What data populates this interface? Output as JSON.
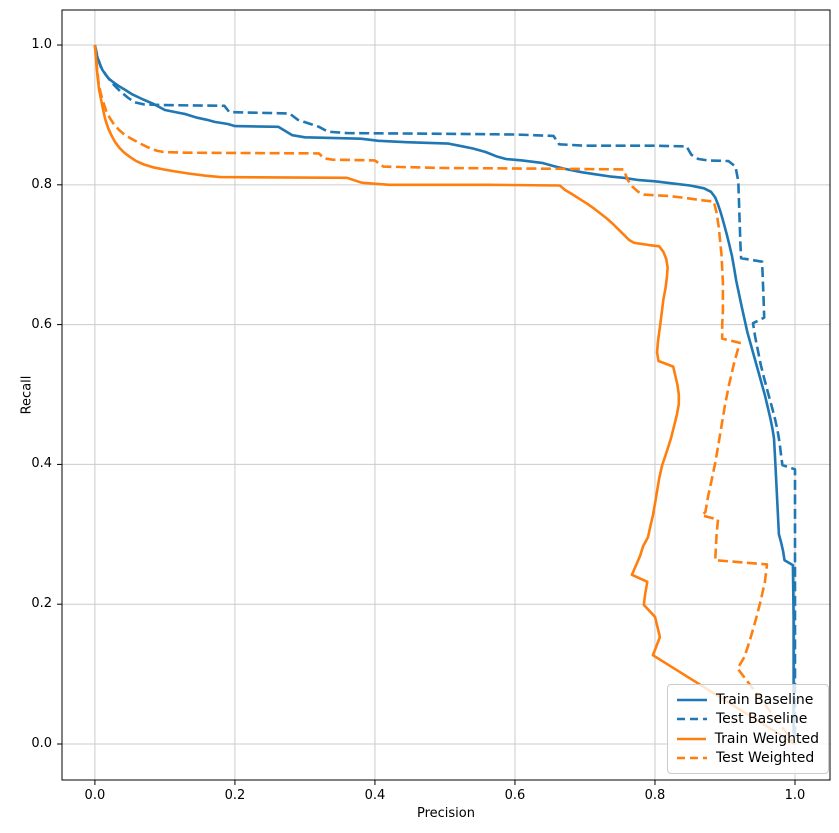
{
  "chart_data": {
    "type": "line",
    "title": "",
    "xlabel": "Precision",
    "ylabel": "Recall",
    "xlim": [
      -0.047,
      1.05
    ],
    "ylim": [
      -0.0515,
      1.0501
    ],
    "xtick_labels": [
      "0.0",
      "0.2",
      "0.4",
      "0.6",
      "0.8",
      "1.0"
    ],
    "ytick_labels": [
      "0.0",
      "0.2",
      "0.4",
      "0.6",
      "0.8",
      "1.0"
    ],
    "grid": true,
    "grid_color": "#cccccc",
    "axes_color": "#000000",
    "legend_position": "lower right",
    "series": [
      {
        "name": "Train Baseline",
        "color": "#1f77b4",
        "style": "solid",
        "points": [
          [
            0.0,
            1.0
          ],
          [
            0.002,
            0.988
          ],
          [
            0.005,
            0.978
          ],
          [
            0.008,
            0.97
          ],
          [
            0.011,
            0.964
          ],
          [
            0.015,
            0.958
          ],
          [
            0.02,
            0.952
          ],
          [
            0.026,
            0.947
          ],
          [
            0.033,
            0.942
          ],
          [
            0.043,
            0.936
          ],
          [
            0.054,
            0.929
          ],
          [
            0.069,
            0.922
          ],
          [
            0.083,
            0.916
          ],
          [
            0.1,
            0.907
          ],
          [
            0.115,
            0.904
          ],
          [
            0.13,
            0.901
          ],
          [
            0.146,
            0.896
          ],
          [
            0.16,
            0.893
          ],
          [
            0.171,
            0.89
          ],
          [
            0.19,
            0.887
          ],
          [
            0.2,
            0.884
          ],
          [
            0.262,
            0.883
          ],
          [
            0.272,
            0.877
          ],
          [
            0.282,
            0.871
          ],
          [
            0.3,
            0.868
          ],
          [
            0.38,
            0.866
          ],
          [
            0.405,
            0.863
          ],
          [
            0.445,
            0.861
          ],
          [
            0.505,
            0.859
          ],
          [
            0.52,
            0.856
          ],
          [
            0.54,
            0.852
          ],
          [
            0.558,
            0.847
          ],
          [
            0.573,
            0.841
          ],
          [
            0.587,
            0.837
          ],
          [
            0.61,
            0.835
          ],
          [
            0.64,
            0.831
          ],
          [
            0.658,
            0.826
          ],
          [
            0.675,
            0.822
          ],
          [
            0.695,
            0.818
          ],
          [
            0.715,
            0.815
          ],
          [
            0.735,
            0.812
          ],
          [
            0.755,
            0.81
          ],
          [
            0.775,
            0.807
          ],
          [
            0.8,
            0.805
          ],
          [
            0.825,
            0.802
          ],
          [
            0.85,
            0.799
          ],
          [
            0.87,
            0.795
          ],
          [
            0.88,
            0.79
          ],
          [
            0.886,
            0.782
          ],
          [
            0.89,
            0.772
          ],
          [
            0.894,
            0.76
          ],
          [
            0.898,
            0.746
          ],
          [
            0.902,
            0.731
          ],
          [
            0.906,
            0.715
          ],
          [
            0.91,
            0.698
          ],
          [
            0.913,
            0.681
          ],
          [
            0.916,
            0.663
          ],
          [
            0.92,
            0.644
          ],
          [
            0.924,
            0.625
          ],
          [
            0.928,
            0.607
          ],
          [
            0.932,
            0.589
          ],
          [
            0.937,
            0.571
          ],
          [
            0.942,
            0.553
          ],
          [
            0.947,
            0.535
          ],
          [
            0.952,
            0.517
          ],
          [
            0.957,
            0.499
          ],
          [
            0.961,
            0.482
          ],
          [
            0.965,
            0.465
          ],
          [
            0.968,
            0.45
          ],
          [
            0.97,
            0.437
          ],
          [
            0.971,
            0.419
          ],
          [
            0.972,
            0.4
          ],
          [
            0.973,
            0.38
          ],
          [
            0.974,
            0.36
          ],
          [
            0.975,
            0.34
          ],
          [
            0.976,
            0.32
          ],
          [
            0.977,
            0.3
          ],
          [
            0.98,
            0.289
          ],
          [
            0.983,
            0.276
          ],
          [
            0.985,
            0.263
          ],
          [
            0.997,
            0.256
          ],
          [
            0.998,
            0.18
          ],
          [
            0.998,
            0.015
          ]
        ]
      },
      {
        "name": "Test Baseline",
        "color": "#1f77b4",
        "style": "dashed",
        "points": [
          [
            0.0,
            1.0
          ],
          [
            0.004,
            0.982
          ],
          [
            0.009,
            0.968
          ],
          [
            0.018,
            0.954
          ],
          [
            0.028,
            0.942
          ],
          [
            0.038,
            0.932
          ],
          [
            0.048,
            0.924
          ],
          [
            0.057,
            0.918
          ],
          [
            0.07,
            0.915
          ],
          [
            0.1,
            0.914
          ],
          [
            0.185,
            0.913
          ],
          [
            0.192,
            0.904
          ],
          [
            0.278,
            0.902
          ],
          [
            0.29,
            0.893
          ],
          [
            0.32,
            0.883
          ],
          [
            0.333,
            0.876
          ],
          [
            0.36,
            0.874
          ],
          [
            0.5,
            0.873
          ],
          [
            0.6,
            0.872
          ],
          [
            0.655,
            0.87
          ],
          [
            0.663,
            0.858
          ],
          [
            0.7,
            0.856
          ],
          [
            0.8,
            0.856
          ],
          [
            0.845,
            0.855
          ],
          [
            0.852,
            0.843
          ],
          [
            0.862,
            0.837
          ],
          [
            0.875,
            0.835
          ],
          [
            0.905,
            0.834
          ],
          [
            0.915,
            0.826
          ],
          [
            0.919,
            0.805
          ],
          [
            0.92,
            0.775
          ],
          [
            0.921,
            0.745
          ],
          [
            0.922,
            0.715
          ],
          [
            0.923,
            0.695
          ],
          [
            0.953,
            0.69
          ],
          [
            0.954,
            0.665
          ],
          [
            0.955,
            0.64
          ],
          [
            0.956,
            0.61
          ],
          [
            0.94,
            0.602
          ],
          [
            0.943,
            0.583
          ],
          [
            0.947,
            0.563
          ],
          [
            0.951,
            0.543
          ],
          [
            0.956,
            0.523
          ],
          [
            0.961,
            0.504
          ],
          [
            0.966,
            0.486
          ],
          [
            0.971,
            0.467
          ],
          [
            0.975,
            0.449
          ],
          [
            0.978,
            0.431
          ],
          [
            0.98,
            0.414
          ],
          [
            0.982,
            0.399
          ],
          [
            1.0,
            0.393
          ],
          [
            1.0,
            0.01
          ]
        ]
      },
      {
        "name": "Train Weighted",
        "color": "#ff7f0e",
        "style": "solid",
        "points": [
          [
            0.0,
            1.0
          ],
          [
            0.002,
            0.974
          ],
          [
            0.004,
            0.953
          ],
          [
            0.006,
            0.936
          ],
          [
            0.009,
            0.921
          ],
          [
            0.012,
            0.906
          ],
          [
            0.015,
            0.893
          ],
          [
            0.019,
            0.881
          ],
          [
            0.024,
            0.87
          ],
          [
            0.029,
            0.861
          ],
          [
            0.035,
            0.853
          ],
          [
            0.042,
            0.846
          ],
          [
            0.05,
            0.84
          ],
          [
            0.059,
            0.834
          ],
          [
            0.07,
            0.829
          ],
          [
            0.083,
            0.825
          ],
          [
            0.098,
            0.822
          ],
          [
            0.115,
            0.819
          ],
          [
            0.135,
            0.816
          ],
          [
            0.158,
            0.813
          ],
          [
            0.179,
            0.811
          ],
          [
            0.36,
            0.81
          ],
          [
            0.381,
            0.803
          ],
          [
            0.42,
            0.8
          ],
          [
            0.56,
            0.8
          ],
          [
            0.664,
            0.799
          ],
          [
            0.671,
            0.793
          ],
          [
            0.681,
            0.787
          ],
          [
            0.692,
            0.78
          ],
          [
            0.703,
            0.773
          ],
          [
            0.713,
            0.766
          ],
          [
            0.722,
            0.759
          ],
          [
            0.731,
            0.752
          ],
          [
            0.74,
            0.744
          ],
          [
            0.748,
            0.736
          ],
          [
            0.756,
            0.728
          ],
          [
            0.763,
            0.721
          ],
          [
            0.77,
            0.717
          ],
          [
            0.79,
            0.714
          ],
          [
            0.806,
            0.712
          ],
          [
            0.812,
            0.704
          ],
          [
            0.816,
            0.694
          ],
          [
            0.818,
            0.682
          ],
          [
            0.817,
            0.668
          ],
          [
            0.815,
            0.652
          ],
          [
            0.812,
            0.636
          ],
          [
            0.81,
            0.62
          ],
          [
            0.808,
            0.604
          ],
          [
            0.806,
            0.589
          ],
          [
            0.804,
            0.574
          ],
          [
            0.803,
            0.56
          ],
          [
            0.805,
            0.548
          ],
          [
            0.826,
            0.54
          ],
          [
            0.829,
            0.527
          ],
          [
            0.832,
            0.514
          ],
          [
            0.834,
            0.5
          ],
          [
            0.834,
            0.486
          ],
          [
            0.831,
            0.47
          ],
          [
            0.827,
            0.454
          ],
          [
            0.823,
            0.438
          ],
          [
            0.818,
            0.422
          ],
          [
            0.813,
            0.407
          ],
          [
            0.81,
            0.398
          ],
          [
            0.806,
            0.38
          ],
          [
            0.803,
            0.362
          ],
          [
            0.8,
            0.344
          ],
          [
            0.797,
            0.327
          ],
          [
            0.793,
            0.31
          ],
          [
            0.79,
            0.296
          ],
          [
            0.783,
            0.283
          ],
          [
            0.779,
            0.27
          ],
          [
            0.767,
            0.242
          ],
          [
            0.789,
            0.232
          ],
          [
            0.786,
            0.215
          ],
          [
            0.784,
            0.199
          ],
          [
            0.8,
            0.182
          ],
          [
            0.807,
            0.153
          ],
          [
            0.797,
            0.127
          ],
          [
            1.0,
            0.0
          ]
        ]
      },
      {
        "name": "Test Weighted",
        "color": "#ff7f0e",
        "style": "dashed",
        "points": [
          [
            0.0,
            1.0
          ],
          [
            0.003,
            0.968
          ],
          [
            0.005,
            0.948
          ],
          [
            0.008,
            0.932
          ],
          [
            0.012,
            0.918
          ],
          [
            0.016,
            0.906
          ],
          [
            0.021,
            0.896
          ],
          [
            0.027,
            0.887
          ],
          [
            0.034,
            0.879
          ],
          [
            0.042,
            0.872
          ],
          [
            0.052,
            0.866
          ],
          [
            0.063,
            0.86
          ],
          [
            0.075,
            0.854
          ],
          [
            0.088,
            0.849
          ],
          [
            0.098,
            0.847
          ],
          [
            0.13,
            0.846
          ],
          [
            0.32,
            0.845
          ],
          [
            0.327,
            0.838
          ],
          [
            0.34,
            0.836
          ],
          [
            0.4,
            0.835
          ],
          [
            0.412,
            0.826
          ],
          [
            0.5,
            0.824
          ],
          [
            0.65,
            0.823
          ],
          [
            0.755,
            0.822
          ],
          [
            0.761,
            0.807
          ],
          [
            0.768,
            0.797
          ],
          [
            0.776,
            0.79
          ],
          [
            0.784,
            0.786
          ],
          [
            0.82,
            0.784
          ],
          [
            0.845,
            0.781
          ],
          [
            0.866,
            0.778
          ],
          [
            0.884,
            0.776
          ],
          [
            0.888,
            0.76
          ],
          [
            0.891,
            0.74
          ],
          [
            0.893,
            0.72
          ],
          [
            0.895,
            0.7
          ],
          [
            0.896,
            0.68
          ],
          [
            0.897,
            0.66
          ],
          [
            0.897,
            0.64
          ],
          [
            0.897,
            0.62
          ],
          [
            0.896,
            0.6
          ],
          [
            0.896,
            0.58
          ],
          [
            0.921,
            0.574
          ],
          [
            0.913,
            0.545
          ],
          [
            0.906,
            0.515
          ],
          [
            0.9,
            0.485
          ],
          [
            0.895,
            0.455
          ],
          [
            0.89,
            0.425
          ],
          [
            0.886,
            0.402
          ],
          [
            0.881,
            0.378
          ],
          [
            0.876,
            0.355
          ],
          [
            0.872,
            0.332
          ],
          [
            0.867,
            0.327
          ],
          [
            0.89,
            0.321
          ],
          [
            0.888,
            0.3
          ],
          [
            0.887,
            0.282
          ],
          [
            0.886,
            0.263
          ],
          [
            0.96,
            0.257
          ],
          [
            0.957,
            0.232
          ],
          [
            0.951,
            0.205
          ],
          [
            0.944,
            0.178
          ],
          [
            0.936,
            0.15
          ],
          [
            0.928,
            0.125
          ],
          [
            0.918,
            0.108
          ],
          [
            1.0,
            0.0
          ]
        ]
      }
    ]
  }
}
